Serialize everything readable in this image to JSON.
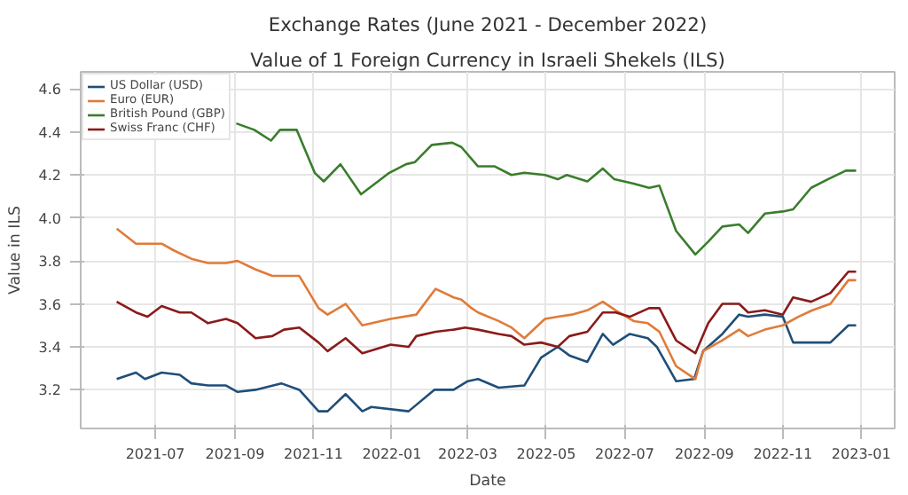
{
  "chart_data": {
    "type": "line",
    "title": "Exchange Rates (June 2021 - December 2022)",
    "subtitle": "Value of 1 Foreign Currency in Israeli Shekels (ILS)",
    "xlabel": "Date",
    "ylabel": "Value in ILS",
    "xlim": [
      "2021-05-04",
      "2023-01-27"
    ],
    "ylim": [
      3.02,
      4.68
    ],
    "xticks": [
      "2021-07",
      "2021-09",
      "2021-11",
      "2022-01",
      "2022-03",
      "2022-05",
      "2022-07",
      "2022-09",
      "2022-11",
      "2023-01"
    ],
    "yticks": [
      3.2,
      3.4,
      3.6,
      3.8,
      {
        "value": 4.0,
        "label": "4.0"
      },
      4.2,
      4.4,
      4.6
    ],
    "grid": true,
    "legend": "top left",
    "line_style": "solid",
    "marker": "none",
    "series": [
      {
        "name": "US Dollar (USD)",
        "color": "#1f4e79",
        "x": [
          "2021-06-01",
          "2021-06-16",
          "2021-06-23",
          "2021-07-06",
          "2021-07-20",
          "2021-07-29",
          "2021-08-11",
          "2021-08-25",
          "2021-09-03",
          "2021-09-17",
          "2021-10-07",
          "2021-10-21",
          "2021-11-05",
          "2021-11-12",
          "2021-11-26",
          "2021-12-09",
          "2021-12-16",
          "2022-01-14",
          "2022-02-03",
          "2022-02-18",
          "2022-03-01",
          "2022-03-09",
          "2022-03-25",
          "2022-04-14",
          "2022-04-27",
          "2022-05-10",
          "2022-05-19",
          "2022-06-02",
          "2022-06-14",
          "2022-06-22",
          "2022-07-05",
          "2022-07-19",
          "2022-07-26",
          "2022-08-10",
          "2022-08-24",
          "2022-08-31",
          "2022-09-15",
          "2022-09-28",
          "2022-10-05",
          "2022-10-18",
          "2022-11-01",
          "2022-11-09",
          "2022-11-23",
          "2022-12-08",
          "2022-12-22",
          "2022-12-28"
        ],
        "values": [
          3.25,
          3.28,
          3.25,
          3.28,
          3.27,
          3.23,
          3.22,
          3.22,
          3.19,
          3.2,
          3.23,
          3.2,
          3.1,
          3.1,
          3.18,
          3.1,
          3.12,
          3.1,
          3.2,
          3.2,
          3.24,
          3.25,
          3.21,
          3.22,
          3.35,
          3.4,
          3.36,
          3.33,
          3.46,
          3.41,
          3.46,
          3.44,
          3.4,
          3.24,
          3.25,
          3.38,
          3.46,
          3.55,
          3.54,
          3.55,
          3.54,
          3.42,
          3.42,
          3.42,
          3.5,
          3.5
        ]
      },
      {
        "name": "Euro (EUR)",
        "color": "#e07b39",
        "x": [
          "2021-06-01",
          "2021-06-16",
          "2021-07-06",
          "2021-07-15",
          "2021-07-29",
          "2021-08-11",
          "2021-08-25",
          "2021-09-03",
          "2021-09-17",
          "2021-09-30",
          "2021-10-09",
          "2021-10-21",
          "2021-11-05",
          "2021-11-12",
          "2021-11-26",
          "2021-12-09",
          "2021-12-31",
          "2022-01-20",
          "2022-02-04",
          "2022-02-18",
          "2022-02-24",
          "2022-03-04",
          "2022-03-09",
          "2022-03-25",
          "2022-04-04",
          "2022-04-14",
          "2022-04-30",
          "2022-05-10",
          "2022-05-21",
          "2022-06-02",
          "2022-06-14",
          "2022-06-24",
          "2022-07-08",
          "2022-07-19",
          "2022-07-28",
          "2022-08-10",
          "2022-08-25",
          "2022-08-31",
          "2022-09-15",
          "2022-09-28",
          "2022-10-05",
          "2022-10-18",
          "2022-11-01",
          "2022-11-13",
          "2022-11-24",
          "2022-12-08",
          "2022-12-22",
          "2022-12-28"
        ],
        "values": [
          3.95,
          3.88,
          3.88,
          3.85,
          3.81,
          3.79,
          3.79,
          3.8,
          3.76,
          3.73,
          3.73,
          3.73,
          3.58,
          3.55,
          3.6,
          3.5,
          3.53,
          3.55,
          3.67,
          3.63,
          3.62,
          3.58,
          3.56,
          3.52,
          3.49,
          3.44,
          3.53,
          3.54,
          3.55,
          3.57,
          3.61,
          3.57,
          3.52,
          3.51,
          3.47,
          3.31,
          3.25,
          3.38,
          3.43,
          3.48,
          3.45,
          3.48,
          3.5,
          3.54,
          3.57,
          3.6,
          3.71,
          3.71
        ]
      },
      {
        "name": "British Pound (GBP)",
        "color": "#3a7d2c",
        "x": [
          "2021-09-02",
          "2021-09-16",
          "2021-09-29",
          "2021-10-06",
          "2021-10-19",
          "2021-11-02",
          "2021-11-09",
          "2021-11-22",
          "2021-12-08",
          "2021-12-30",
          "2022-01-12",
          "2022-01-19",
          "2022-02-01",
          "2022-02-17",
          "2022-02-24",
          "2022-03-09",
          "2022-03-22",
          "2022-04-04",
          "2022-04-14",
          "2022-04-30",
          "2022-05-10",
          "2022-05-17",
          "2022-06-02",
          "2022-06-14",
          "2022-06-23",
          "2022-07-08",
          "2022-07-20",
          "2022-07-28",
          "2022-08-10",
          "2022-08-25",
          "2022-09-04",
          "2022-09-15",
          "2022-09-28",
          "2022-10-05",
          "2022-10-18",
          "2022-11-01",
          "2022-11-09",
          "2022-11-23",
          "2022-12-06",
          "2022-12-20",
          "2022-12-28"
        ],
        "values": [
          4.44,
          4.41,
          4.36,
          4.41,
          4.41,
          4.21,
          4.17,
          4.25,
          4.11,
          4.21,
          4.25,
          4.26,
          4.34,
          4.35,
          4.33,
          4.24,
          4.24,
          4.2,
          4.21,
          4.2,
          4.18,
          4.2,
          4.17,
          4.23,
          4.18,
          4.16,
          4.14,
          4.15,
          3.94,
          3.83,
          3.89,
          3.96,
          3.97,
          3.93,
          4.02,
          4.03,
          4.04,
          4.14,
          4.18,
          4.22,
          4.22
        ]
      },
      {
        "name": "Swiss Franc (CHF)",
        "color": "#8b1a1a",
        "x": [
          "2021-06-01",
          "2021-06-16",
          "2021-06-25",
          "2021-07-06",
          "2021-07-20",
          "2021-07-29",
          "2021-08-11",
          "2021-08-25",
          "2021-09-03",
          "2021-09-17",
          "2021-09-30",
          "2021-10-09",
          "2021-10-21",
          "2021-11-05",
          "2021-11-12",
          "2021-11-26",
          "2021-12-09",
          "2021-12-31",
          "2022-01-14",
          "2022-01-20",
          "2022-02-04",
          "2022-02-18",
          "2022-02-27",
          "2022-03-09",
          "2022-03-25",
          "2022-04-04",
          "2022-04-14",
          "2022-04-27",
          "2022-05-10",
          "2022-05-19",
          "2022-06-02",
          "2022-06-14",
          "2022-06-24",
          "2022-07-05",
          "2022-07-20",
          "2022-07-28",
          "2022-08-10",
          "2022-08-25",
          "2022-09-04",
          "2022-09-15",
          "2022-09-28",
          "2022-10-05",
          "2022-10-18",
          "2022-11-01",
          "2022-11-09",
          "2022-11-23",
          "2022-12-08",
          "2022-12-22",
          "2022-12-28"
        ],
        "values": [
          3.61,
          3.56,
          3.54,
          3.59,
          3.56,
          3.56,
          3.51,
          3.53,
          3.51,
          3.44,
          3.45,
          3.48,
          3.49,
          3.42,
          3.38,
          3.44,
          3.37,
          3.41,
          3.4,
          3.45,
          3.47,
          3.48,
          3.49,
          3.48,
          3.46,
          3.45,
          3.41,
          3.42,
          3.4,
          3.45,
          3.47,
          3.56,
          3.56,
          3.54,
          3.58,
          3.58,
          3.43,
          3.37,
          3.51,
          3.6,
          3.6,
          3.56,
          3.57,
          3.55,
          3.63,
          3.61,
          3.65,
          3.75,
          3.75
        ]
      }
    ]
  }
}
